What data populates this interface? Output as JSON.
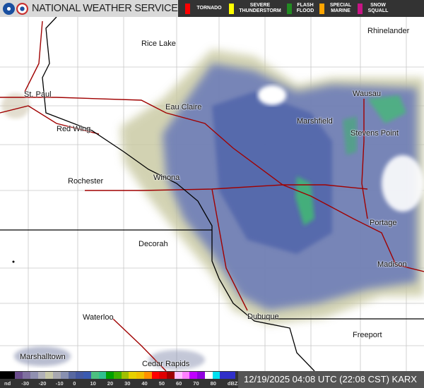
{
  "header": {
    "title": "NATIONAL WEATHER SERVICE",
    "logos": [
      "noaa-logo",
      "nws-logo"
    ]
  },
  "warnings": [
    {
      "label": "TORNADO",
      "color": "#ff0000"
    },
    {
      "label": "SEVERE THUNDERSTORM",
      "color": "#ffff00"
    },
    {
      "label": "FLASH FLOOD",
      "color": "#228b22"
    },
    {
      "label": "SPECIAL MARINE",
      "color": "#ffa500"
    },
    {
      "label": "SNOW SQUALL",
      "color": "#c71585"
    }
  ],
  "cities": [
    {
      "name": "Rhinelander"
    },
    {
      "name": "Rice Lake"
    },
    {
      "name": "St. Paul"
    },
    {
      "name": "Wausau"
    },
    {
      "name": "Eau Claire"
    },
    {
      "name": "Marshfield"
    },
    {
      "name": "Red Wing"
    },
    {
      "name": "Stevens Point"
    },
    {
      "name": "Winona"
    },
    {
      "name": "Rochester"
    },
    {
      "name": "Portage"
    },
    {
      "name": "Decorah"
    },
    {
      "name": "Madison"
    },
    {
      "name": "Waterloo"
    },
    {
      "name": "Dubuque"
    },
    {
      "name": "Freeport"
    },
    {
      "name": "Marshalltown"
    },
    {
      "name": "Cedar Rapids"
    }
  ],
  "scale": {
    "labels": [
      "nd",
      "-30",
      "-20",
      "-10",
      "0",
      "10",
      "20",
      "30",
      "40",
      "50",
      "60",
      "70",
      "80",
      "dBZ"
    ],
    "colors": [
      "#000000",
      "#000000",
      "#6a4c8c",
      "#8070a0",
      "#9090b0",
      "#b0b0b8",
      "#c8c8a8",
      "#a8a8b0",
      "#8890b0",
      "#5868a0",
      "#4458a0",
      "#3a5ab0",
      "#4cc080",
      "#30c090",
      "#00a000",
      "#40b000",
      "#a0c000",
      "#e8d000",
      "#f0c000",
      "#ff9000",
      "#ff0000",
      "#e00000",
      "#a00000",
      "#ffc0ff",
      "#ff80ff",
      "#c000ff",
      "#9000e0",
      "#ffffff",
      "#00e0f0",
      "#3030c8",
      "#3030c8"
    ]
  },
  "timestamp": "12/19/2025 04:08 UTC (22:08 CST) KARX"
}
